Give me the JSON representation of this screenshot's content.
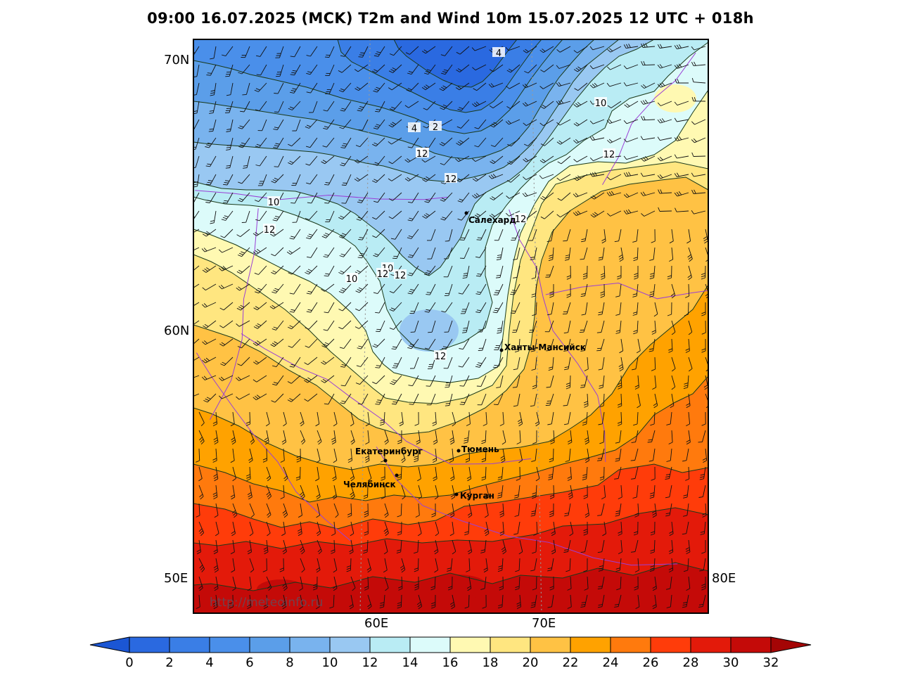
{
  "title": "09:00 16.07.2025 (MCK) T2m and Wind 10m 15.07.2025 12 UTC + 018h",
  "lat_labels": [
    "70N",
    "60N"
  ],
  "lon_labels_side": [
    "50E",
    "80E"
  ],
  "lon_labels_bottom": [
    "60E",
    "70E"
  ],
  "watermark": "http://meteoinfo.ru",
  "cities": [
    {
      "name": "Салехард",
      "lat": 66.5,
      "lon": 66.6
    },
    {
      "name": "Ханты-Мансийск",
      "lat": 61.0,
      "lon": 69.0
    },
    {
      "name": "Екатеринбург",
      "lat": 56.8,
      "lon": 60.6
    },
    {
      "name": "Тюмень",
      "lat": 57.15,
      "lon": 65.5
    },
    {
      "name": "Челябинск",
      "lat": 55.15,
      "lon": 61.4
    },
    {
      "name": "Курган",
      "lat": 55.45,
      "lon": 65.3
    }
  ],
  "contour_labels": [
    "4",
    "2",
    "4",
    "10",
    "12",
    "10",
    "12",
    "10",
    "12",
    "12",
    "10",
    "12",
    "12",
    "10",
    "12",
    "12"
  ],
  "colorbar": {
    "ticks": [
      "0",
      "2",
      "4",
      "6",
      "8",
      "10",
      "12",
      "14",
      "16",
      "18",
      "20",
      "22",
      "24",
      "26",
      "28",
      "30",
      "32"
    ],
    "colors": [
      "#2a69e0",
      "#3a7ee6",
      "#4a8fea",
      "#5b9ee9",
      "#79b3ee",
      "#99c8f2",
      "#b9ecf4",
      "#dcfbfa",
      "#fff9b2",
      "#ffe680",
      "#ffc244",
      "#ffa200",
      "#ff7a0d",
      "#ff3c0a",
      "#e31a0a",
      "#c40a08"
    ],
    "low_arrow_color": "#1b56d4",
    "high_arrow_color": "#a40505"
  }
}
